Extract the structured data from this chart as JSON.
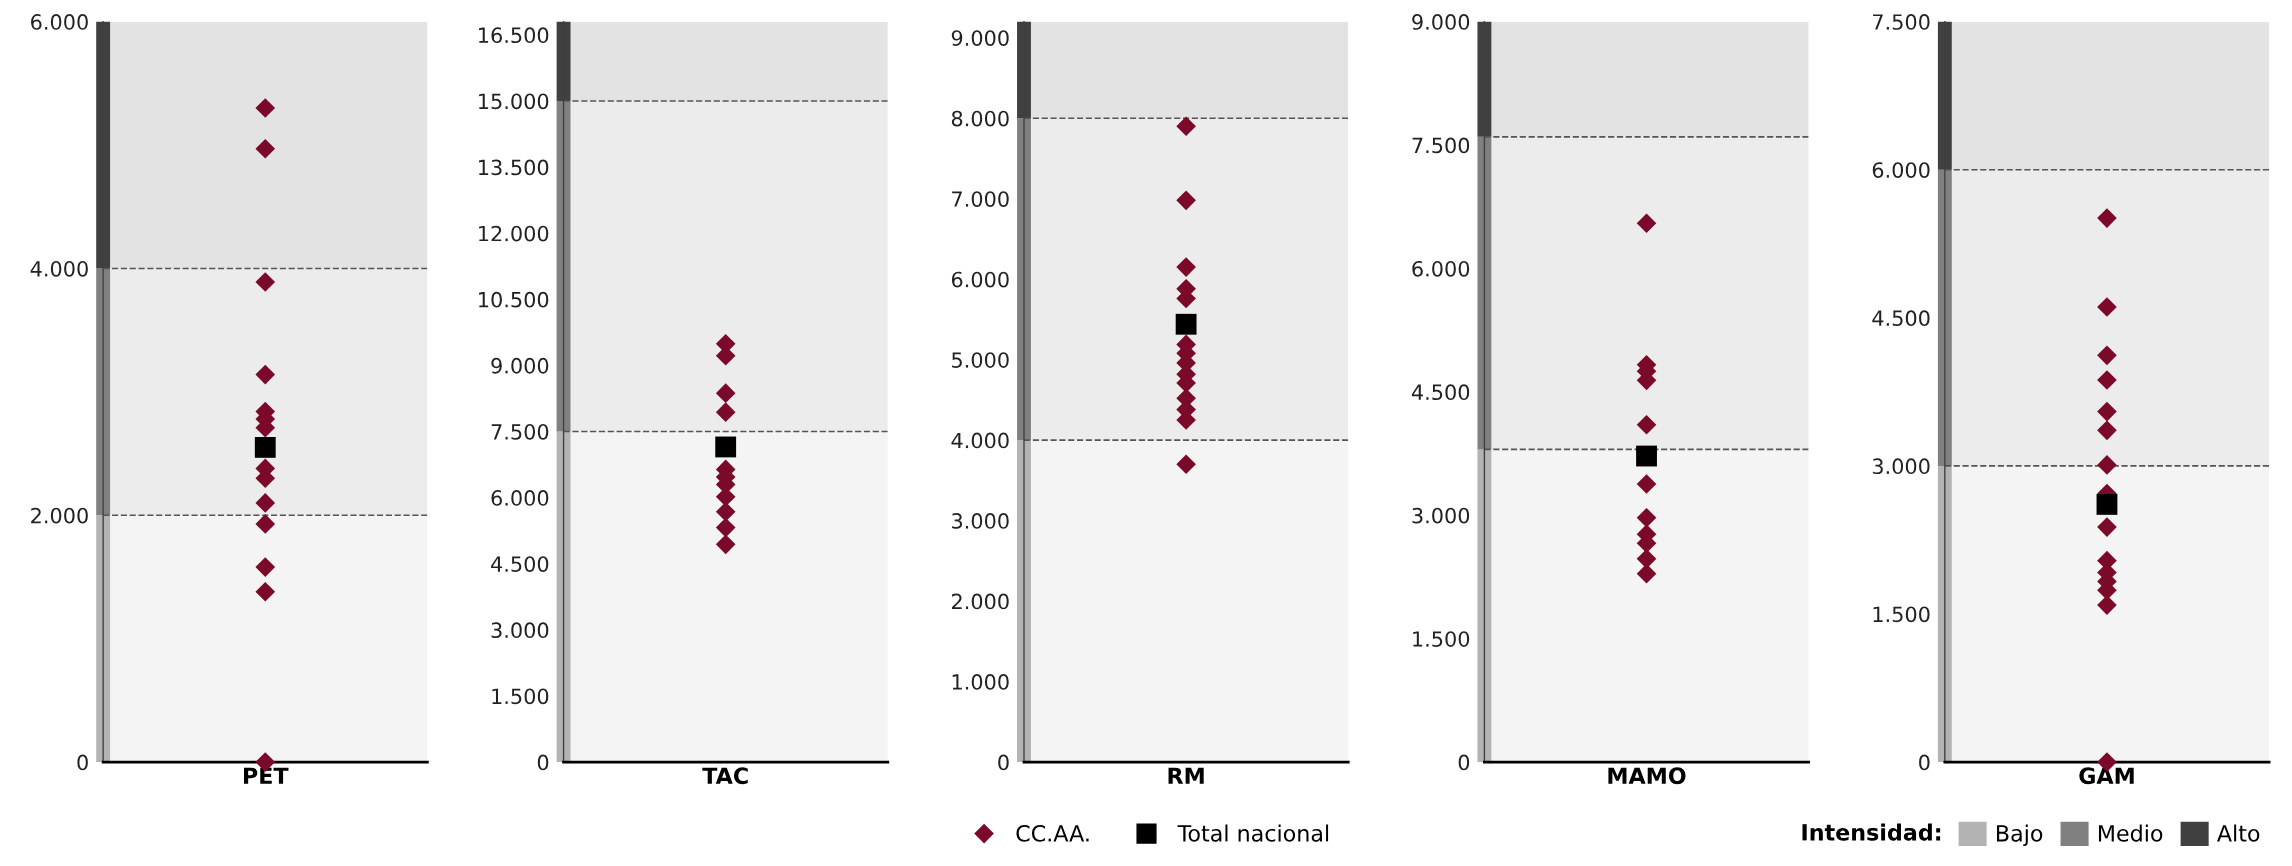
{
  "chart_data": [
    {
      "type": "scatter",
      "categories": [
        "PET"
      ],
      "legend": "bottom",
      "legend_title": "Intensidad:",
      "ylim": [
        0,
        6000
      ],
      "yticks": [
        0,
        {
          "value": 2000,
          "label": "2.000"
        },
        {
          "value": 4000,
          "label": "4.000"
        },
        {
          "value": 6000,
          "label": "6.000"
        }
      ],
      "series": [
        {
          "name": "CC.AA.",
          "color": "#7b0a2a",
          "marker": "diamond",
          "x": [
            "PET",
            "PET",
            "PET",
            "PET",
            "PET",
            "PET",
            "PET",
            "PET",
            "PET",
            "PET",
            "PET",
            "PET",
            "PET",
            "PET"
          ],
          "values": [
            5300,
            4970,
            3890,
            3140,
            2840,
            2780,
            2710,
            2380,
            2300,
            2100,
            1930,
            1580,
            1380,
            0
          ]
        },
        {
          "name": "Total nacional",
          "color": "#000000",
          "marker": "square",
          "x": [
            "PET"
          ],
          "values": [
            2550
          ]
        }
      ],
      "bands": [
        {
          "axis": "y",
          "from": 0,
          "to": 2000,
          "label": "Bajo",
          "color": "#b3b3b3"
        },
        {
          "axis": "y",
          "from": 2000,
          "to": 4000,
          "label": "Medio",
          "color": "#808080"
        },
        {
          "axis": "y",
          "from": 4000,
          "to": 6000,
          "label": "Alto",
          "color": "#404040"
        }
      ],
      "ref_lines": [
        {
          "axis": "y",
          "value": 2000,
          "line_style": "dashed"
        },
        {
          "axis": "y",
          "value": 4000,
          "line_style": "dashed"
        }
      ]
    },
    {
      "type": "scatter",
      "categories": [
        "TAC"
      ],
      "ylim": [
        0,
        16800
      ],
      "yticks": [
        0,
        {
          "value": 1500,
          "label": "1.500"
        },
        {
          "value": 3000,
          "label": "3.000"
        },
        {
          "value": 4500,
          "label": "4.500"
        },
        {
          "value": 6000,
          "label": "6.000"
        },
        {
          "value": 7500,
          "label": "7.500"
        },
        {
          "value": 9000,
          "label": "9.000"
        },
        {
          "value": 10500,
          "label": "10.500"
        },
        {
          "value": 12000,
          "label": "12.000"
        },
        {
          "value": 13500,
          "label": "13.500"
        },
        {
          "value": 15000,
          "label": "15.000"
        },
        {
          "value": 16500,
          "label": "16.500"
        }
      ],
      "series": [
        {
          "color": "#7b0a2a",
          "marker": "diamond",
          "x": [
            "TAC",
            "TAC",
            "TAC",
            "TAC",
            "TAC",
            "TAC",
            "TAC",
            "TAC",
            "TAC",
            "TAC",
            "TAC",
            "TAC",
            "TAC"
          ],
          "values": [
            9490,
            9220,
            8370,
            7940,
            null,
            null,
            6640,
            6470,
            6300,
            6020,
            5680,
            5320,
            4940
          ]
        },
        {
          "color": "#000000",
          "marker": "square",
          "x": [
            "TAC"
          ],
          "values": [
            7150
          ]
        }
      ],
      "bands": [
        {
          "axis": "y",
          "from": 0,
          "to": 7500,
          "color": "#b3b3b3"
        },
        {
          "axis": "y",
          "from": 7500,
          "to": 15000,
          "color": "#808080"
        },
        {
          "axis": "y",
          "from": 15000,
          "to": 16800,
          "color": "#404040"
        }
      ],
      "ref_lines": [
        {
          "axis": "y",
          "value": 7500,
          "line_style": "dashed"
        },
        {
          "axis": "y",
          "value": 15000,
          "line_style": "dashed"
        }
      ]
    },
    {
      "type": "scatter",
      "categories": [
        "RM"
      ],
      "ylim": [
        0,
        9200
      ],
      "yticks": [
        0,
        {
          "value": 1000,
          "label": "1.000"
        },
        {
          "value": 2000,
          "label": "2.000"
        },
        {
          "value": 3000,
          "label": "3.000"
        },
        {
          "value": 4000,
          "label": "4.000"
        },
        {
          "value": 5000,
          "label": "5.000"
        },
        {
          "value": 6000,
          "label": "6.000"
        },
        {
          "value": 7000,
          "label": "7.000"
        },
        {
          "value": 8000,
          "label": "8.000"
        },
        {
          "value": 9000,
          "label": "9.000"
        }
      ],
      "series": [
        {
          "color": "#7b0a2a",
          "marker": "diamond",
          "x": [
            "RM",
            "RM",
            "RM",
            "RM",
            "RM",
            "RM",
            "RM",
            "RM",
            "RM",
            "RM",
            "RM",
            "RM",
            "RM",
            "RM",
            "RM"
          ],
          "values": [
            7900,
            6980,
            6150,
            5880,
            5760,
            null,
            5190,
            5080,
            4960,
            4820,
            4710,
            4520,
            4380,
            4250,
            3700
          ]
        },
        {
          "color": "#000000",
          "marker": "square",
          "x": [
            "RM"
          ],
          "values": [
            5440
          ]
        }
      ],
      "bands": [
        {
          "axis": "y",
          "from": 0,
          "to": 4000,
          "color": "#b3b3b3"
        },
        {
          "axis": "y",
          "from": 4000,
          "to": 8000,
          "color": "#808080"
        },
        {
          "axis": "y",
          "from": 8000,
          "to": 9200,
          "color": "#404040"
        }
      ],
      "ref_lines": [
        {
          "axis": "y",
          "value": 4000,
          "line_style": "dashed"
        },
        {
          "axis": "y",
          "value": 8000,
          "line_style": "dashed"
        }
      ]
    },
    {
      "type": "scatter",
      "categories": [
        "MAMO"
      ],
      "ylim": [
        0,
        9000
      ],
      "yticks": [
        0,
        {
          "value": 1500,
          "label": "1.500"
        },
        {
          "value": 3000,
          "label": "3.000"
        },
        {
          "value": 4500,
          "label": "4.500"
        },
        {
          "value": 6000,
          "label": "6.000"
        },
        {
          "value": 7500,
          "label": "7.500"
        },
        {
          "value": 9000,
          "label": "9.000"
        }
      ],
      "series": [
        {
          "color": "#7b0a2a",
          "marker": "diamond",
          "x": [
            "MAMO",
            "MAMO",
            "MAMO",
            "MAMO",
            "MAMO",
            "MAMO",
            "MAMO",
            "MAMO",
            "MAMO",
            "MAMO",
            "MAMO",
            "MAMO"
          ],
          "values": [
            6550,
            4830,
            4750,
            4640,
            4100,
            null,
            3380,
            2970,
            2770,
            2660,
            2470,
            2290
          ]
        },
        {
          "color": "#000000",
          "marker": "square",
          "x": [
            "MAMO"
          ],
          "values": [
            3720
          ]
        }
      ],
      "bands": [
        {
          "axis": "y",
          "from": 0,
          "to": 3800,
          "color": "#b3b3b3"
        },
        {
          "axis": "y",
          "from": 3800,
          "to": 7600,
          "color": "#808080"
        },
        {
          "axis": "y",
          "from": 7600,
          "to": 9000,
          "color": "#404040"
        }
      ],
      "ref_lines": [
        {
          "axis": "y",
          "value": 3800,
          "line_style": "dashed"
        },
        {
          "axis": "y",
          "value": 7600,
          "line_style": "dashed"
        }
      ]
    },
    {
      "type": "scatter",
      "categories": [
        "GAM"
      ],
      "ylim": [
        0,
        7500
      ],
      "yticks": [
        0,
        {
          "value": 1500,
          "label": "1.500"
        },
        {
          "value": 3000,
          "label": "3.000"
        },
        {
          "value": 4500,
          "label": "4.500"
        },
        {
          "value": 6000,
          "label": "6.000"
        },
        {
          "value": 7500,
          "label": "7.500"
        }
      ],
      "series": [
        {
          "color": "#7b0a2a",
          "marker": "diamond",
          "x": [
            "GAM",
            "GAM",
            "GAM",
            "GAM",
            "GAM",
            "GAM",
            "GAM",
            "GAM",
            "GAM",
            "GAM",
            "GAM",
            "GAM",
            "GAM",
            "GAM",
            "GAM"
          ],
          "values": [
            5510,
            4610,
            4120,
            3870,
            3550,
            3360,
            3010,
            2720,
            2380,
            2040,
            1920,
            1830,
            1740,
            1590,
            0
          ]
        },
        {
          "color": "#000000",
          "marker": "square",
          "x": [
            "GAM"
          ],
          "values": [
            2610
          ]
        }
      ],
      "bands": [
        {
          "axis": "y",
          "from": 0,
          "to": 3000,
          "color": "#b3b3b3"
        },
        {
          "axis": "y",
          "from": 3000,
          "to": 6000,
          "color": "#808080"
        },
        {
          "axis": "y",
          "from": 6000,
          "to": 7500,
          "color": "#404040"
        }
      ],
      "ref_lines": [
        {
          "axis": "y",
          "value": 3000,
          "line_style": "dashed"
        },
        {
          "axis": "y",
          "value": 6000,
          "line_style": "dashed"
        }
      ]
    }
  ]
}
